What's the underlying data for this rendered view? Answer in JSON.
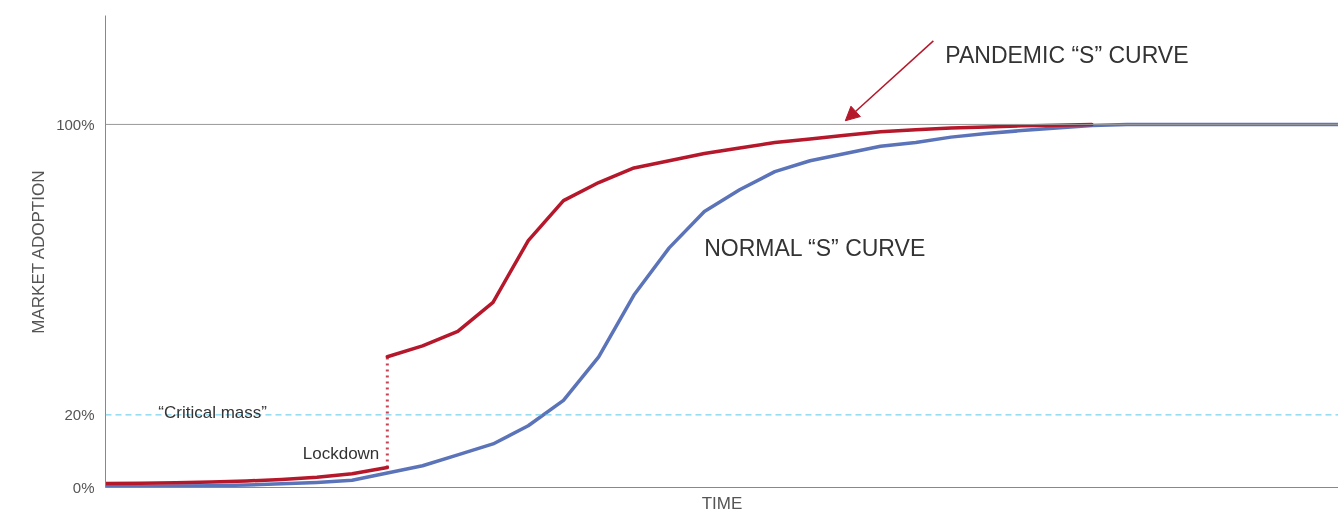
{
  "chart_data": {
    "type": "line",
    "xlabel": "TIME",
    "ylabel": "MARKET ADOPTION",
    "categories": [
      null,
      null,
      null,
      null,
      null,
      null,
      null,
      null,
      null,
      null,
      null,
      null,
      null,
      null,
      null,
      null,
      null,
      null,
      null,
      null,
      null,
      null,
      null,
      null,
      null,
      null,
      null,
      null,
      null,
      null,
      null,
      null,
      null,
      null,
      null,
      null
    ],
    "ylim": [
      0,
      130
    ],
    "yticks": [
      {
        "value": 0,
        "label": "0%"
      },
      {
        "value": 20,
        "label": "20%"
      },
      {
        "value": 100,
        "label": "100%"
      }
    ],
    "grid": false,
    "line_style": "solid",
    "marker": "none",
    "series": [
      {
        "name": "NORMAL “S” CURVE",
        "color": "#5b73b8",
        "values": [
          0.3,
          0.3,
          0.4,
          0.5,
          0.7,
          1,
          1.4,
          2,
          4,
          6,
          9,
          12,
          17,
          24,
          36,
          53,
          66,
          76,
          82,
          87,
          90,
          92,
          94,
          95,
          96.5,
          97.5,
          98.3,
          99,
          99.7,
          100,
          100,
          100,
          100,
          100,
          100,
          100
        ]
      },
      {
        "color": "#b5172b",
        "values": [
          1.1,
          1.2,
          1.3,
          1.5,
          1.8,
          2.2,
          2.8,
          3.8,
          5.5,
          null,
          null,
          null,
          null,
          null,
          null,
          null,
          null,
          null,
          null,
          null,
          null,
          null,
          null,
          null,
          null,
          null,
          null,
          null,
          null,
          null,
          null,
          null,
          null,
          null,
          null,
          null
        ]
      },
      {
        "name": "PANDEMIC “S” CURVE",
        "color": "#b5172b",
        "values": [
          null,
          null,
          null,
          null,
          null,
          null,
          null,
          null,
          36,
          39,
          43,
          51,
          68,
          79,
          84,
          88,
          90,
          92,
          93.5,
          95,
          96,
          97,
          98,
          98.5,
          99,
          99.3,
          99.6,
          99.8,
          100,
          null,
          null,
          null,
          null,
          null,
          null,
          null
        ]
      }
    ],
    "ref_lines": [
      {
        "axis": "y",
        "value": 100,
        "color": "#999999",
        "line_style": "solid"
      },
      {
        "axis": "y",
        "value": 20,
        "label": "“Critical mass”",
        "color": "#5bc8e8",
        "line_style": "dashed"
      }
    ],
    "annotations": [
      "Lockdown"
    ]
  }
}
